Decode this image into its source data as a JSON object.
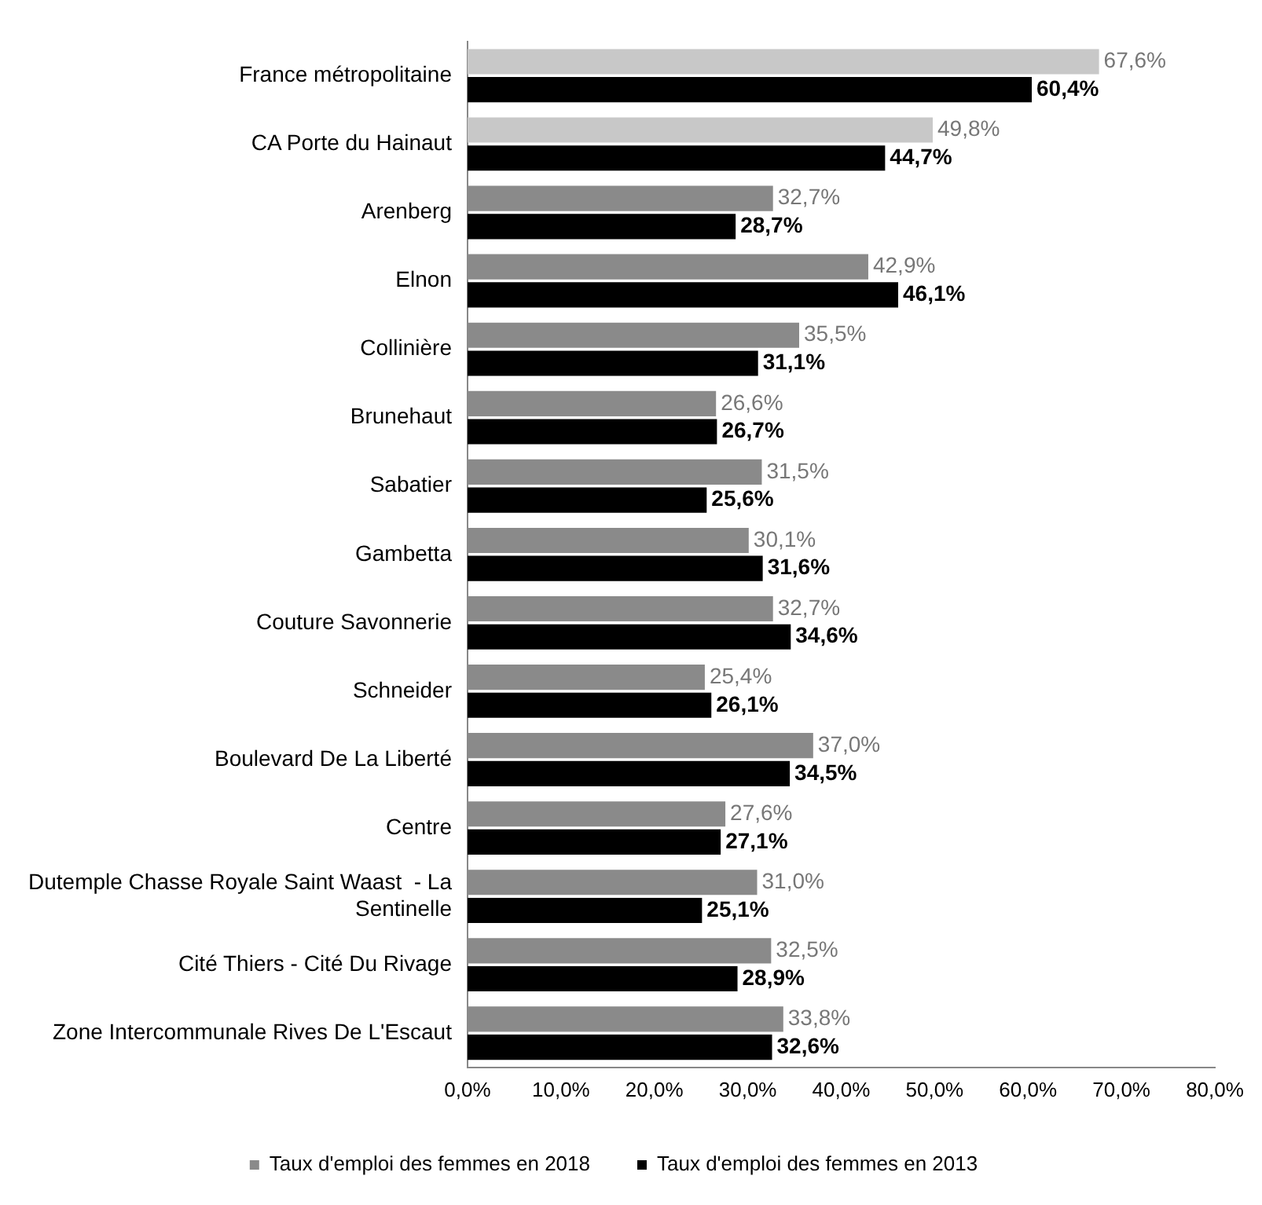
{
  "chart_data": {
    "type": "bar",
    "orientation": "horizontal",
    "categories": [
      "France métropolitaine",
      "CA Porte du Hainaut",
      "Arenberg",
      "Elnon",
      "Collinière",
      "Brunehaut",
      "Sabatier",
      "Gambetta",
      "Couture Savonnerie",
      "Schneider",
      "Boulevard De La Liberté",
      "Centre",
      "Dutemple Chasse Royale Saint Waast  - La Sentinelle",
      "Cité Thiers - Cité Du Rivage",
      "Zone Intercommunale Rives De L'Escaut"
    ],
    "series": [
      {
        "name": "Taux d'emploi des femmes en 2018",
        "color": "#8a8a8a",
        "colors": [
          "#c8c8c8",
          "#c8c8c8",
          "#8a8a8a",
          "#8a8a8a",
          "#8a8a8a",
          "#8a8a8a",
          "#8a8a8a",
          "#8a8a8a",
          "#8a8a8a",
          "#8a8a8a",
          "#8a8a8a",
          "#8a8a8a",
          "#8a8a8a",
          "#8a8a8a",
          "#8a8a8a"
        ],
        "values": [
          67.6,
          49.8,
          32.7,
          42.9,
          35.5,
          26.6,
          31.5,
          30.1,
          32.7,
          25.4,
          37.0,
          27.6,
          31.0,
          32.5,
          33.8
        ],
        "value_labels": [
          "67,6%",
          "49,8%",
          "32,7%",
          "42,9%",
          "35,5%",
          "26,6%",
          "31,5%",
          "30,1%",
          "32,7%",
          "25,4%",
          "37,0%",
          "27,6%",
          "31,0%",
          "32,5%",
          "33,8%"
        ]
      },
      {
        "name": "Taux d'emploi des femmes en 2013",
        "color": "#000000",
        "values": [
          60.4,
          44.7,
          28.7,
          46.1,
          31.1,
          26.7,
          25.6,
          31.6,
          34.6,
          26.1,
          34.5,
          27.1,
          25.1,
          28.9,
          32.6
        ],
        "value_labels": [
          "60,4%",
          "44,7%",
          "28,7%",
          "46,1%",
          "31,1%",
          "26,7%",
          "25,6%",
          "31,6%",
          "34,6%",
          "26,1%",
          "34,5%",
          "27,1%",
          "25,1%",
          "28,9%",
          "32,6%"
        ]
      }
    ],
    "xlim": [
      0,
      80
    ],
    "xticks": [
      {
        "value": 0,
        "label": "0,0%"
      },
      {
        "value": 10,
        "label": "10,0%"
      },
      {
        "value": 20,
        "label": "20,0%"
      },
      {
        "value": 30,
        "label": "30,0%"
      },
      {
        "value": 40,
        "label": "40,0%"
      },
      {
        "value": 50,
        "label": "50,0%"
      },
      {
        "value": 60,
        "label": "60,0%"
      },
      {
        "value": 70,
        "label": "70,0%"
      },
      {
        "value": 80,
        "label": "80,0%"
      }
    ],
    "grid": false,
    "legend": "bottom"
  }
}
